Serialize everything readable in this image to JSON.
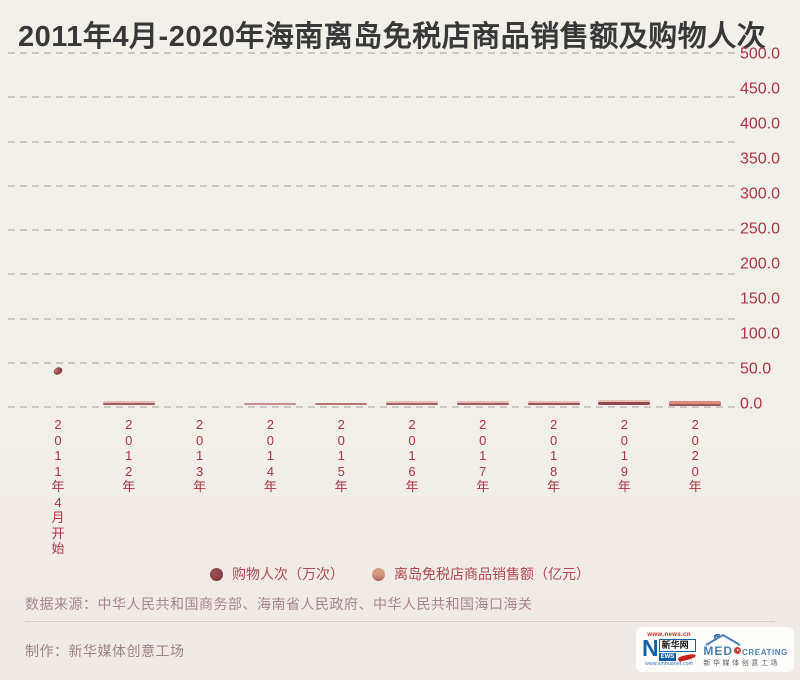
{
  "title": "2011年4月-2020年海南离岛免税店商品销售额及购物人次",
  "colors": {
    "background": "#f2efe9",
    "title_text": "#383838",
    "axis_text": "#ab3440",
    "gridline": "#cbc7c0",
    "visits_marker": "#84343c",
    "sales_marker": "#d89a82",
    "legend_text": "#b14753",
    "footer_text": "#a5838b",
    "divider": "#d9cbca"
  },
  "chart_data": {
    "type": "line",
    "title": "2011年4月-2020年海南离岛免税店商品销售额及购物人次",
    "note": "animation frame: most series values still drawn near the zero baseline",
    "x_categories": [
      "2011年4月开始",
      "2012年",
      "2013年",
      "2014年",
      "2015年",
      "2016年",
      "2017年",
      "2018年",
      "2019年",
      "2020年"
    ],
    "y_axis": {
      "side": "right",
      "min": 0,
      "max": 500,
      "tick_step": 50,
      "tick_labels": [
        "500.0",
        "450.0",
        "400.0",
        "350.0",
        "300.0",
        "250.0",
        "200.0",
        "150.0",
        "100.0",
        "50.0",
        "0.0"
      ]
    },
    "grid": {
      "visible": true,
      "style": "dashed",
      "visible_line_count": 9
    },
    "legend": {
      "position": "bottom",
      "entries": [
        {
          "label": "购物人次（万次）",
          "color": "#84343c"
        },
        {
          "label": "离岛免税店商品销售额（亿元）",
          "color": "#d89a82"
        }
      ]
    },
    "series": [
      {
        "name": "购物人次（万次）",
        "marker": "dot",
        "color": "#84343c",
        "points": [
          {
            "category": "2011年4月开始",
            "category_index": 0,
            "value": 48
          }
        ]
      },
      {
        "name": "离岛免税店商品销售额（亿元）",
        "marker": "segment",
        "color": "#d98e7c",
        "points": [
          {
            "category": "2012年",
            "category_index": 1,
            "value": 2,
            "color": "#a4595e",
            "thickness": 2,
            "halo": "top"
          },
          {
            "category": "2014年",
            "category_index": 3,
            "value": 2,
            "color": "#c68e90",
            "thickness": 2,
            "halo": "none"
          },
          {
            "category": "2015年",
            "category_index": 4,
            "value": 2,
            "color": "#b5767a",
            "thickness": 2,
            "halo": "none"
          },
          {
            "category": "2016年",
            "category_index": 5,
            "value": 2,
            "color": "#a56065",
            "thickness": 2,
            "halo": "top"
          },
          {
            "category": "2017年",
            "category_index": 6,
            "value": 2,
            "color": "#a05a60",
            "thickness": 2,
            "halo": "top"
          },
          {
            "category": "2018年",
            "category_index": 7,
            "value": 2,
            "color": "#9b5056",
            "thickness": 2,
            "halo": "top"
          },
          {
            "category": "2019年",
            "category_index": 8,
            "value": 2.5,
            "color": "#94464c",
            "thickness": 3,
            "halo": "top"
          },
          {
            "category": "2020年",
            "category_index": 9,
            "value": 3,
            "color": "#d98e7c",
            "thickness": 3,
            "halo": "bottom"
          }
        ]
      }
    ]
  },
  "footer": {
    "source": "数据来源：中华人民共和国商务部、海南省人民政府、中华人民共和国海口海关",
    "credit": "制作：新华媒体创意工场"
  },
  "logos": {
    "xinhua": {
      "url_top": "www.news.cn",
      "brand": "新华网",
      "news_big": "N",
      "news_rest": "EWS",
      "url_bottom": "www.xinhuanet.com"
    },
    "medcreating": {
      "brand_big": "MED",
      "brand_small": "CREATING",
      "subtitle": "新华媒体创意工场"
    }
  }
}
